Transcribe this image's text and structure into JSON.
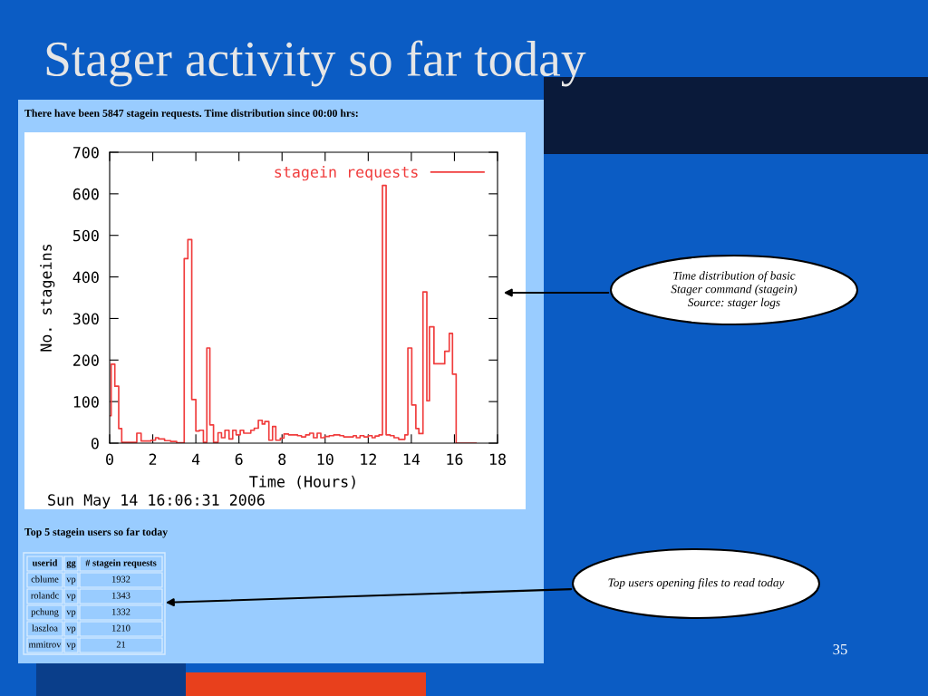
{
  "chart_data": [
    {
      "type": "step",
      "title": "Stager activity so far today",
      "subtitle": "There have been 5847 stagein requests. Time distribution since 00:00 hrs:",
      "xlabel": "Time (Hours)",
      "ylabel": "No. stageins",
      "xlim": [
        0,
        18
      ],
      "ylim": [
        0,
        700
      ],
      "xticks": [
        0,
        2,
        4,
        6,
        8,
        10,
        12,
        14,
        16,
        18
      ],
      "yticks": [
        0,
        100,
        200,
        300,
        400,
        500,
        600,
        700
      ],
      "grid": false,
      "legend": "top right",
      "marker": "none",
      "line_style": "solid",
      "series": [
        {
          "name": "stagein requests",
          "color": "#f03c3c",
          "x": [
            0.0,
            0.07,
            0.24,
            0.42,
            0.56,
            1.26,
            1.46,
            1.92,
            2.13,
            2.27,
            2.55,
            2.83,
            3.11,
            3.46,
            3.63,
            3.81,
            4.0,
            4.16,
            4.35,
            4.51,
            4.65,
            4.82,
            5.03,
            5.19,
            5.35,
            5.54,
            5.71,
            5.87,
            6.06,
            6.22,
            6.55,
            6.71,
            6.9,
            7.08,
            7.2,
            7.39,
            7.56,
            7.71,
            7.92,
            8.09,
            8.3,
            8.72,
            8.9,
            9.1,
            9.28,
            9.46,
            9.63,
            9.8,
            9.98,
            10.19,
            10.4,
            10.68,
            10.86,
            11.31,
            11.45,
            11.62,
            11.8,
            12.01,
            12.18,
            12.32,
            12.5,
            12.66,
            12.83,
            13.02,
            13.2,
            13.41,
            13.7,
            13.84,
            14.02,
            14.21,
            14.35,
            14.54,
            14.72,
            14.84,
            15.05,
            15.55,
            15.76,
            15.91,
            16.08,
            17.0
          ],
          "values": [
            66,
            190,
            137,
            35,
            2,
            24,
            5,
            7,
            13,
            10,
            6,
            4,
            1,
            444,
            490,
            105,
            29,
            31,
            2,
            229,
            44,
            2,
            25,
            13,
            31,
            10,
            31,
            20,
            31,
            24,
            31,
            36,
            55,
            46,
            52,
            7,
            40,
            7,
            12,
            22,
            20,
            18,
            15,
            20,
            24,
            13,
            24,
            13,
            16,
            18,
            20,
            18,
            15,
            18,
            13,
            18,
            15,
            18,
            13,
            17,
            20,
            620,
            20,
            18,
            13,
            9,
            20,
            229,
            92,
            35,
            23,
            364,
            102,
            280,
            191,
            221,
            264,
            166,
            0,
            0
          ]
        }
      ],
      "annotations": [
        "Sun May 14 16:06:31 2006",
        "Time distribution of basic\nStager command (stagein)\nSource: stager logs",
        "35"
      ]
    },
    {
      "type": "other",
      "title": "Top 5 stagein users so far today",
      "annotations": [
        "Top users opening files to read today",
        "userid",
        "gg",
        "# stagein requests",
        "cblume",
        "vp",
        "1932",
        "rolandc",
        "vp",
        "1343",
        "pchung",
        "vp",
        "1332",
        "laszloa",
        "vp",
        "1210",
        "mmitrov",
        "vp",
        "21"
      ]
    }
  ]
}
